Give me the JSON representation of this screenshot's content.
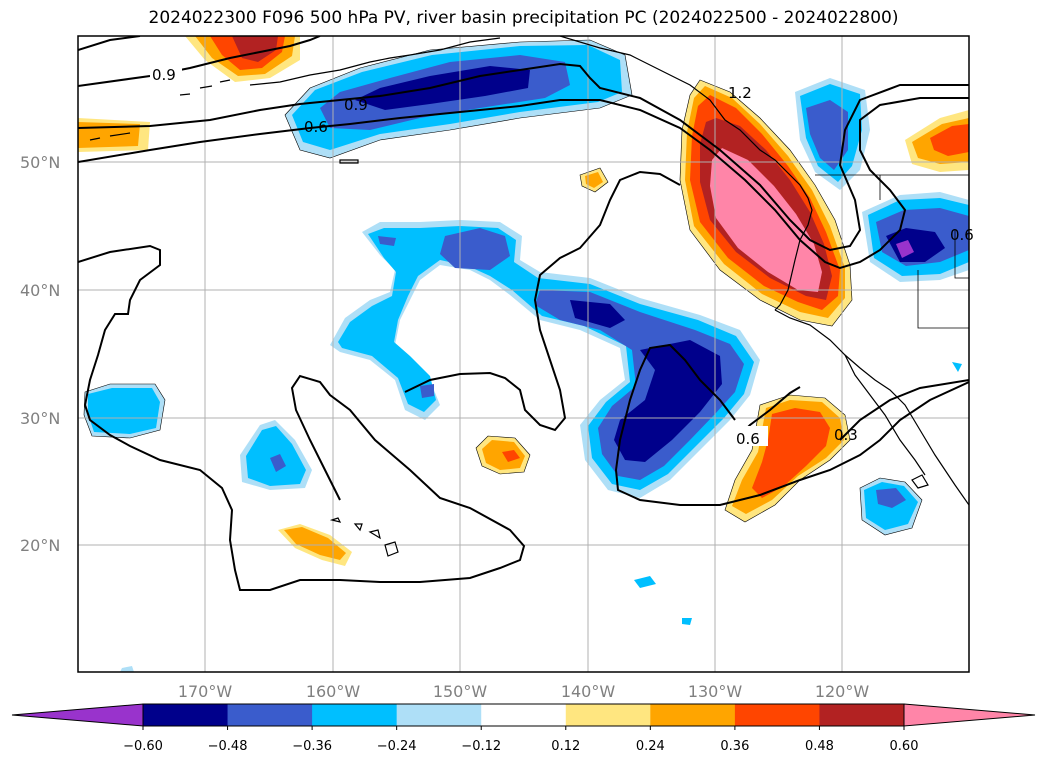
{
  "title": "2024022300 F096 500 hPa PV, river basin precipitation PC (2024022500 - 2024022800)",
  "map": {
    "lat_labels": [
      "50°N",
      "40°N",
      "30°N",
      "20°N"
    ],
    "lon_labels": [
      "170°W",
      "160°W",
      "150°W",
      "140°W",
      "130°W",
      "120°W"
    ],
    "contour_labels": [
      "0.9",
      "0.9",
      "0.6",
      "1.2",
      "0.6",
      "0.3",
      "0.6"
    ]
  },
  "colorbar": {
    "ticks": [
      "−0.60",
      "−0.48",
      "−0.36",
      "−0.24",
      "−0.12",
      "0.12",
      "0.24",
      "0.36",
      "0.48",
      "0.60"
    ],
    "colors": [
      "#9933cc",
      "#00008b",
      "#3a5ccc",
      "#00bfff",
      "#aedff7",
      "#ffffff",
      "#ffe680",
      "#ffa500",
      "#ff4500",
      "#b22222",
      "#ff85a8"
    ]
  }
}
